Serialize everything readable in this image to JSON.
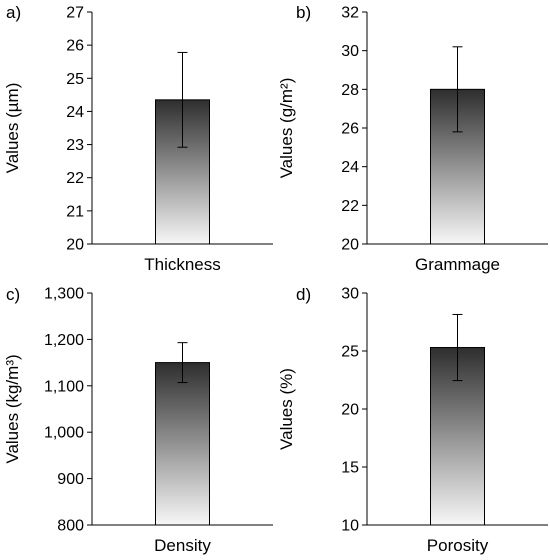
{
  "chart_data": [
    {
      "type": "bar",
      "panel": "a)",
      "categories": [
        "Thickness"
      ],
      "values": [
        24.35
      ],
      "error": [
        1.43
      ],
      "ylabel": "Values (µm)",
      "ylim": [
        20,
        27
      ],
      "yticks": [
        20,
        21,
        22,
        23,
        24,
        25,
        26,
        27
      ],
      "ytick_labels": [
        "20",
        "21",
        "22",
        "23",
        "24",
        "25",
        "26",
        "27"
      ]
    },
    {
      "type": "bar",
      "panel": "b)",
      "categories": [
        "Grammage"
      ],
      "values": [
        28.0
      ],
      "error": [
        2.2
      ],
      "ylabel": "Values (g/m²)",
      "ylim": [
        20,
        32
      ],
      "yticks": [
        20,
        22,
        24,
        26,
        28,
        30,
        32
      ],
      "ytick_labels": [
        "20",
        "22",
        "24",
        "26",
        "28",
        "30",
        "32"
      ]
    },
    {
      "type": "bar",
      "panel": "c)",
      "categories": [
        "Density"
      ],
      "values": [
        1150
      ],
      "error": [
        43
      ],
      "ylabel": "Values (kg/m³)",
      "ylim": [
        800,
        1300
      ],
      "yticks": [
        800,
        900,
        1000,
        1100,
        1200,
        1300
      ],
      "ytick_labels": [
        "800",
        "900",
        "1,000",
        "1,100",
        "1,200",
        "1,300"
      ]
    },
    {
      "type": "bar",
      "panel": "d)",
      "categories": [
        "Porosity"
      ],
      "values": [
        25.3
      ],
      "error": [
        2.85
      ],
      "ylabel": "Values (%)",
      "ylim": [
        10,
        30
      ],
      "yticks": [
        10,
        15,
        20,
        25,
        30
      ],
      "ytick_labels": [
        "10",
        "15",
        "20",
        "25",
        "30"
      ]
    }
  ],
  "colors": {
    "bar_top": "#2e2e2e",
    "bar_bottom": "#f7f7f7",
    "axis": "#000000"
  }
}
